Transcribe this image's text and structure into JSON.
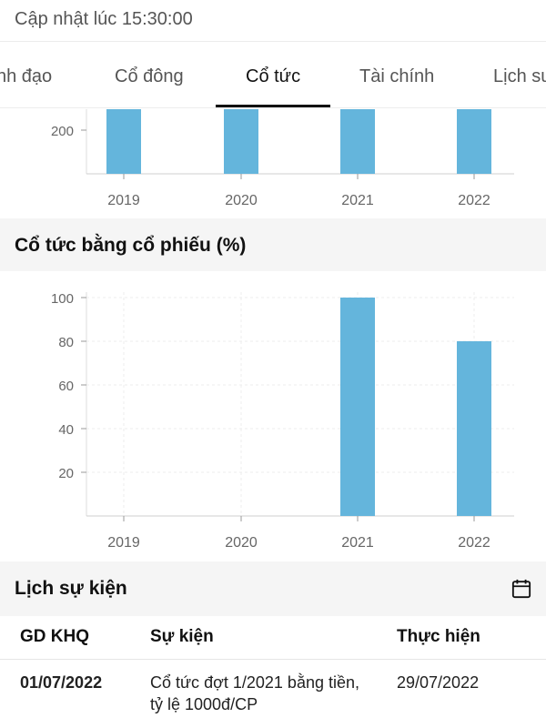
{
  "header": {
    "updated_label": "Cập nhật lúc 15:30:00"
  },
  "tabs": [
    {
      "label": "nh đạo",
      "active": false
    },
    {
      "label": "Cổ đông",
      "active": false
    },
    {
      "label": "Cổ tức",
      "active": true
    },
    {
      "label": "Tài chính",
      "active": false
    },
    {
      "label": "Lịch sư",
      "active": false
    }
  ],
  "cash_chart": {
    "type": "bar",
    "color": "#64b5dc",
    "categories": [
      "2019",
      "2020",
      "2021",
      "2022"
    ],
    "visible_y_ticks": [
      "200"
    ]
  },
  "stock_chart": {
    "title": "Cổ tức bằng cổ phiếu (%)",
    "chart_data": {
      "type": "bar",
      "color": "#64b5dc",
      "categories": [
        "2019",
        "2020",
        "2021",
        "2022"
      ],
      "values": [
        0,
        0,
        100,
        80
      ],
      "ylim": [
        0,
        100
      ],
      "yticks": [
        20,
        40,
        60,
        80,
        100
      ],
      "grid": true
    }
  },
  "events": {
    "title": "Lịch sự kiện",
    "calendar_icon": "calendar-icon",
    "columns": [
      "GD KHQ",
      "Sự kiện",
      "Thực hiện"
    ],
    "rows": [
      {
        "ex_date": "01/07/2022",
        "event_line1": "Cổ tức đợt 1/2021 bằng tiền,",
        "event_line2": "tỷ lệ 1000đ/CP",
        "payment_date": "29/07/2022"
      }
    ]
  }
}
